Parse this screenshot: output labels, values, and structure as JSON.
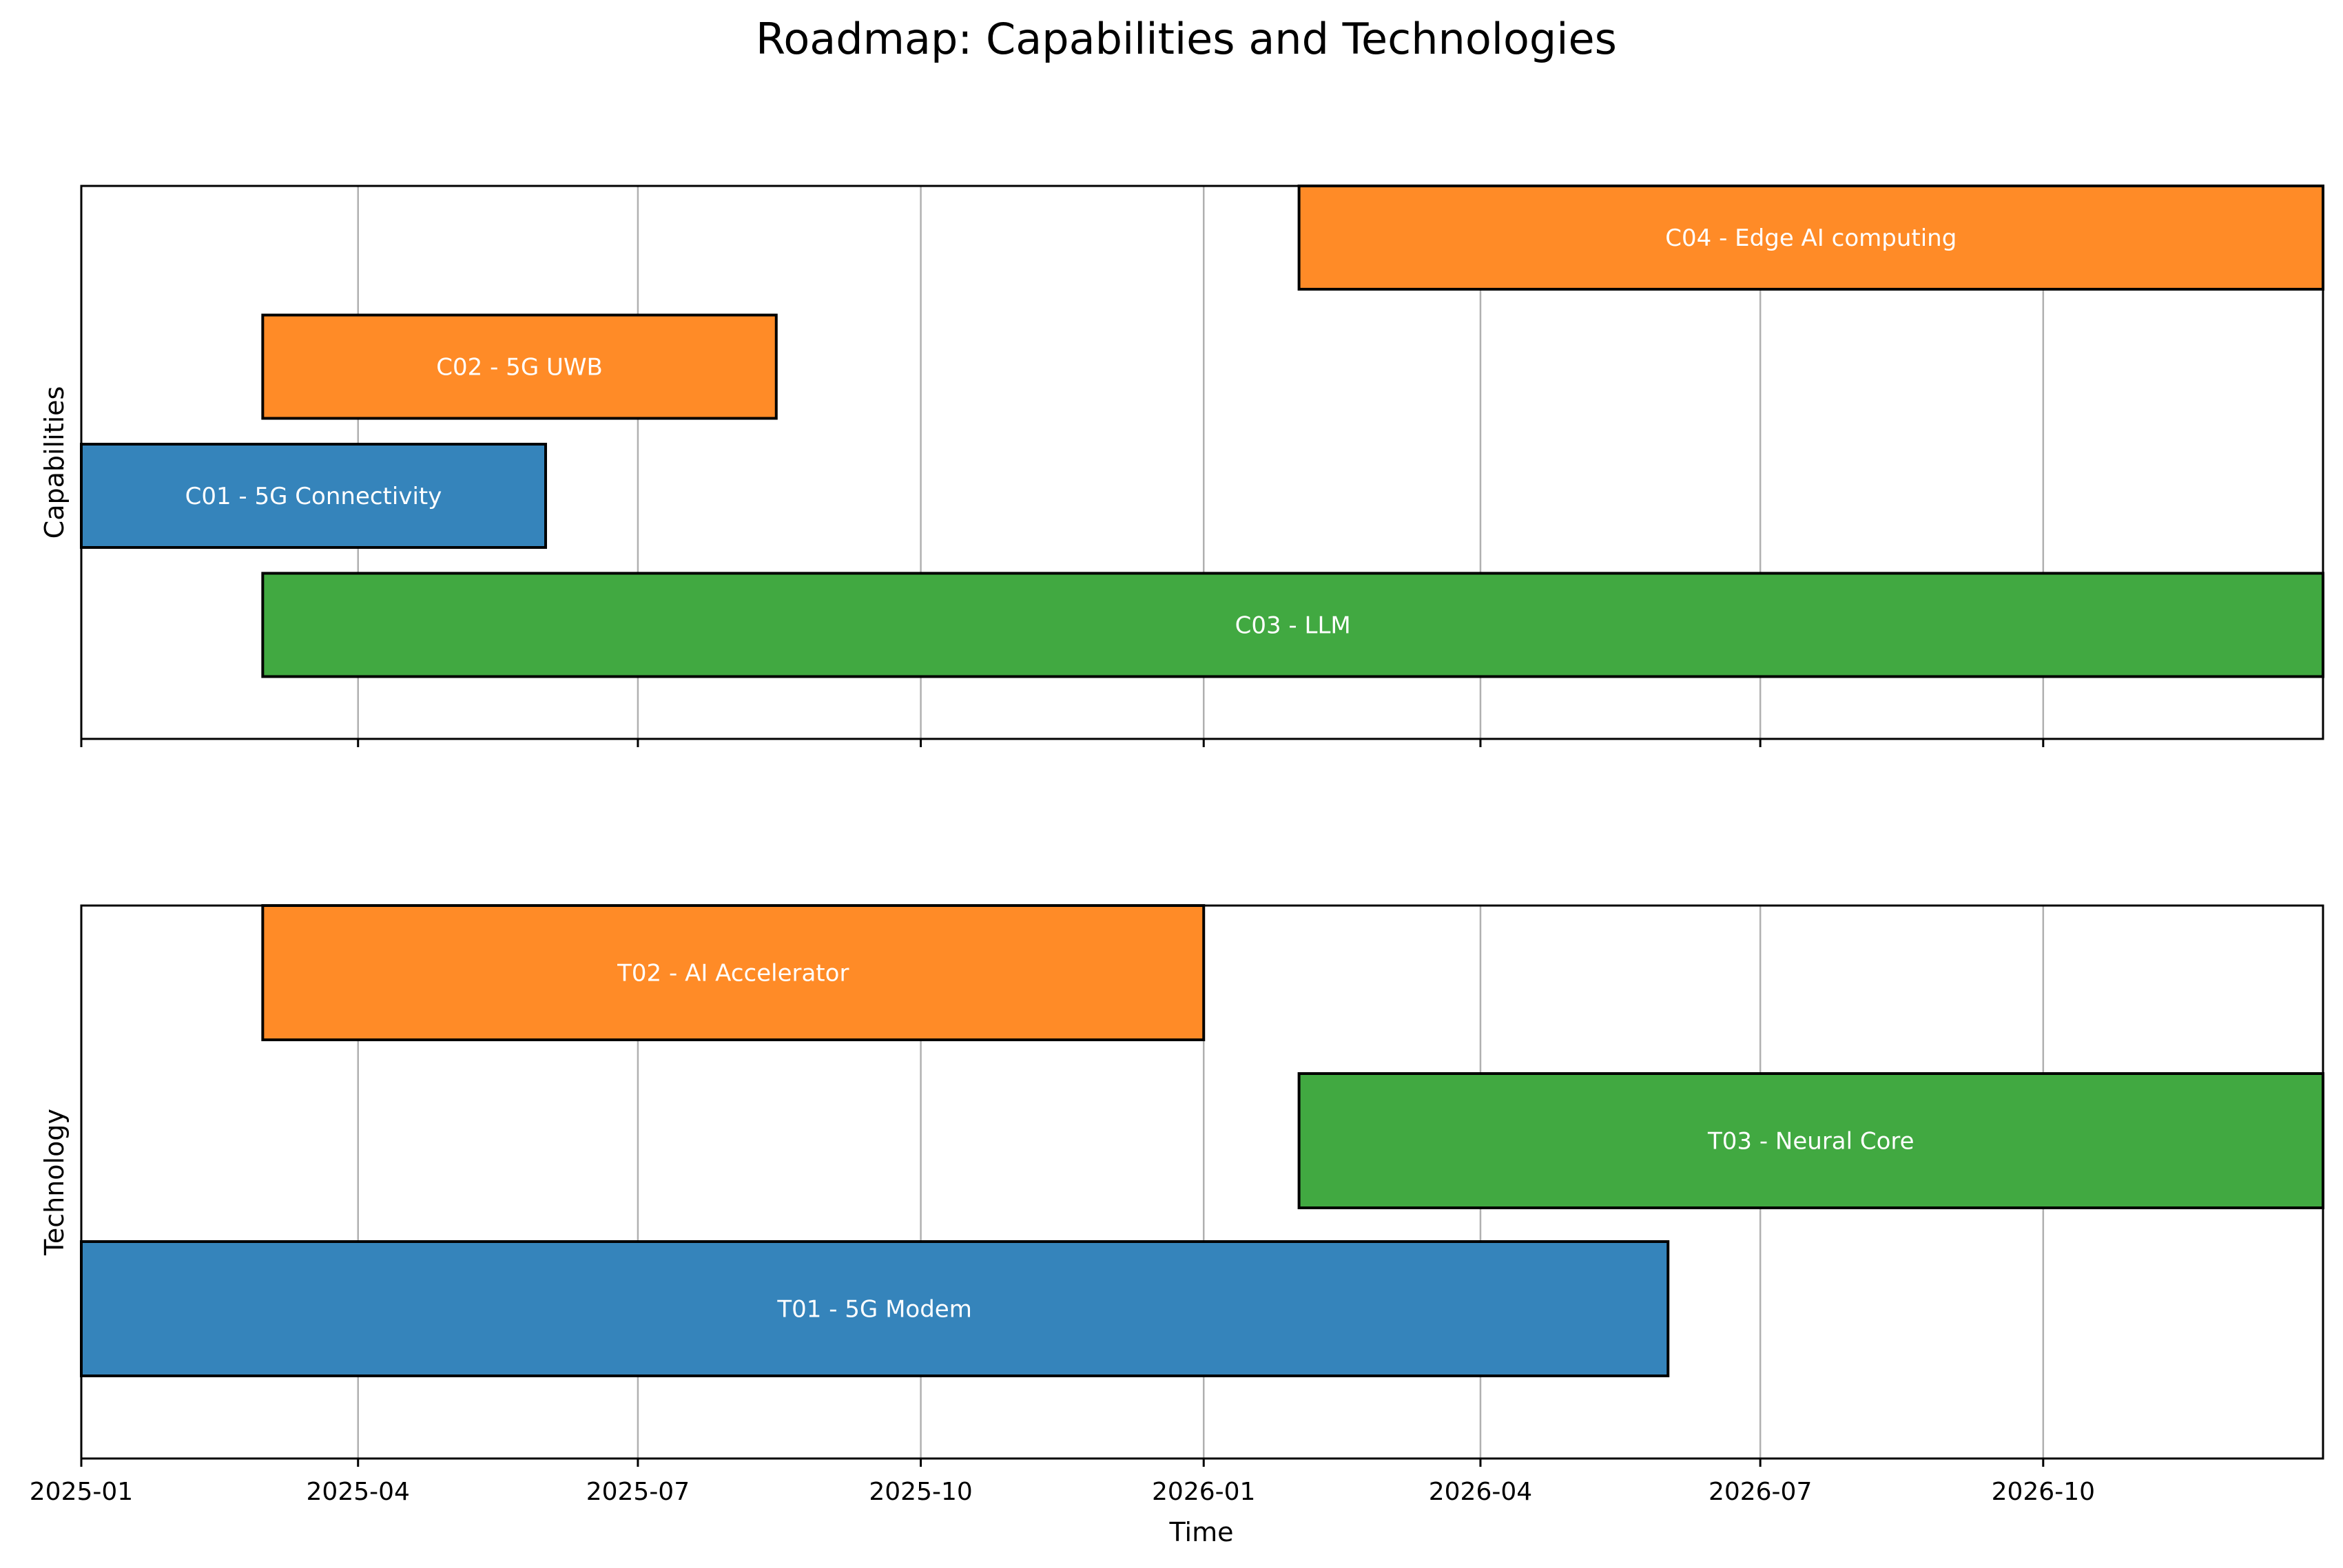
{
  "chart_data": {
    "type": "gantt",
    "title": "Roadmap: Capabilities and Technologies",
    "xlabel": "Time",
    "xlim": [
      "2025-01-01",
      "2026-12-31"
    ],
    "x_ticks": [
      "2025-01",
      "2025-04",
      "2025-07",
      "2025-10",
      "2026-01",
      "2026-04",
      "2026-07",
      "2026-10"
    ],
    "grid": "vertical lines at x ticks",
    "colors": {
      "blue": "#3584bb",
      "orange": "#ff8b27",
      "green": "#41a941"
    },
    "panels": [
      {
        "ylabel": "Capabilities",
        "rows": 4,
        "tasks": [
          {
            "label": "C04 - Edge AI computing",
            "start": "2026-02-01",
            "end": "2026-12-31",
            "color": "#ff8b27"
          },
          {
            "label": "C02 - 5G UWB",
            "start": "2025-03-01",
            "end": "2025-08-15",
            "color": "#ff8b27"
          },
          {
            "label": "C01 - 5G Connectivity",
            "start": "2025-01-01",
            "end": "2025-06-01",
            "color": "#3584bb"
          },
          {
            "label": "C03 - LLM",
            "start": "2025-03-01",
            "end": "2026-12-31",
            "color": "#41a941"
          }
        ]
      },
      {
        "ylabel": "Technology",
        "rows": 3,
        "tasks": [
          {
            "label": "T02 - AI Accelerator",
            "start": "2025-03-01",
            "end": "2026-01-01",
            "color": "#ff8b27"
          },
          {
            "label": "T03 - Neural Core",
            "start": "2026-02-01",
            "end": "2026-12-31",
            "color": "#41a941"
          },
          {
            "label": "T01 - 5G Modem",
            "start": "2025-01-01",
            "end": "2026-06-01",
            "color": "#3584bb"
          }
        ]
      }
    ]
  }
}
